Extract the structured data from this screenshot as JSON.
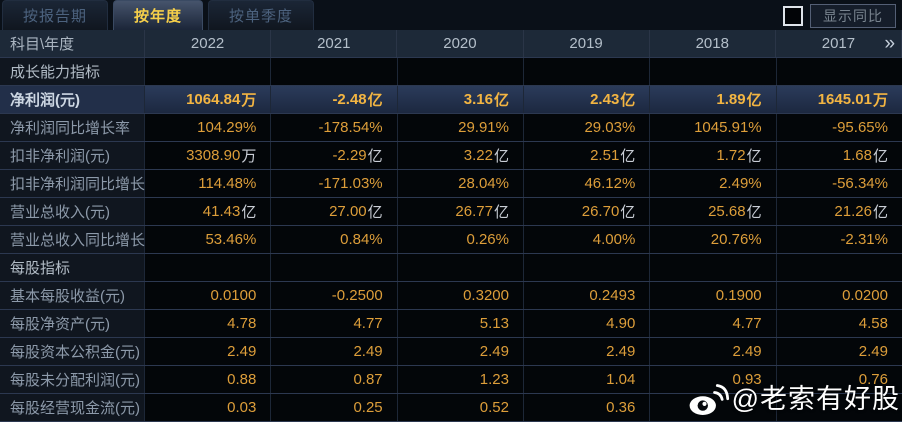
{
  "tabs": [
    {
      "label": "按报告期",
      "active": false
    },
    {
      "label": "按年度",
      "active": true
    },
    {
      "label": "按单季度",
      "active": false
    }
  ],
  "controls": {
    "show_yoy_label": "显示同比",
    "checkbox_checked": false
  },
  "colors": {
    "accent_value": "#dd9e3a",
    "highlight_value": "#f3b542",
    "active_tab_text": "#f6cf4a",
    "header_bg": "#1d2938",
    "highlight_row_bg": "#2b3b5a"
  },
  "table": {
    "corner_label": "科目\\年度",
    "years": [
      "2022",
      "2021",
      "2020",
      "2019",
      "2018",
      "2017"
    ],
    "more_icon": "»",
    "rows": [
      {
        "type": "section",
        "label": "成长能力指标"
      },
      {
        "type": "data",
        "label": "净利润(元)",
        "highlight": true,
        "values": [
          [
            "1064.84",
            "万"
          ],
          [
            "-2.48",
            "亿"
          ],
          [
            "3.16",
            "亿"
          ],
          [
            "2.43",
            "亿"
          ],
          [
            "1.89",
            "亿"
          ],
          [
            "1645.01",
            "万"
          ]
        ]
      },
      {
        "type": "data",
        "label": "净利润同比增长率",
        "values": [
          "104.29%",
          "-178.54%",
          "29.91%",
          "29.03%",
          "1045.91%",
          "-95.65%"
        ]
      },
      {
        "type": "data",
        "label": "扣非净利润(元)",
        "values": [
          [
            "3308.90",
            "万"
          ],
          [
            "-2.29",
            "亿"
          ],
          [
            "3.22",
            "亿"
          ],
          [
            "2.51",
            "亿"
          ],
          [
            "1.72",
            "亿"
          ],
          [
            "1.68",
            "亿"
          ]
        ]
      },
      {
        "type": "data",
        "label": "扣非净利润同比增长率",
        "values": [
          "114.48%",
          "-171.03%",
          "28.04%",
          "46.12%",
          "2.49%",
          "-56.34%"
        ]
      },
      {
        "type": "data",
        "label": "营业总收入(元)",
        "values": [
          [
            "41.43",
            "亿"
          ],
          [
            "27.00",
            "亿"
          ],
          [
            "26.77",
            "亿"
          ],
          [
            "26.70",
            "亿"
          ],
          [
            "25.68",
            "亿"
          ],
          [
            "21.26",
            "亿"
          ]
        ]
      },
      {
        "type": "data",
        "label": "营业总收入同比增长率",
        "values": [
          "53.46%",
          "0.84%",
          "0.26%",
          "4.00%",
          "20.76%",
          "-2.31%"
        ]
      },
      {
        "type": "section",
        "label": "每股指标"
      },
      {
        "type": "data",
        "label": "基本每股收益(元)",
        "values": [
          "0.0100",
          "-0.2500",
          "0.3200",
          "0.2493",
          "0.1900",
          "0.0200"
        ]
      },
      {
        "type": "data",
        "label": "每股净资产(元)",
        "values": [
          "4.78",
          "4.77",
          "5.13",
          "4.90",
          "4.77",
          "4.58"
        ]
      },
      {
        "type": "data",
        "label": "每股资本公积金(元)",
        "values": [
          "2.49",
          "2.49",
          "2.49",
          "2.49",
          "2.49",
          "2.49"
        ]
      },
      {
        "type": "data",
        "label": "每股未分配利润(元)",
        "values": [
          "0.88",
          "0.87",
          "1.23",
          "1.04",
          "0.93",
          "0.76"
        ]
      },
      {
        "type": "data",
        "label": "每股经营现金流(元)",
        "values": [
          "0.03",
          "0.25",
          "0.52",
          "0.36",
          "",
          ""
        ]
      }
    ]
  },
  "watermark": {
    "handle": "@老索有好股",
    "logo": "weibo-icon"
  }
}
